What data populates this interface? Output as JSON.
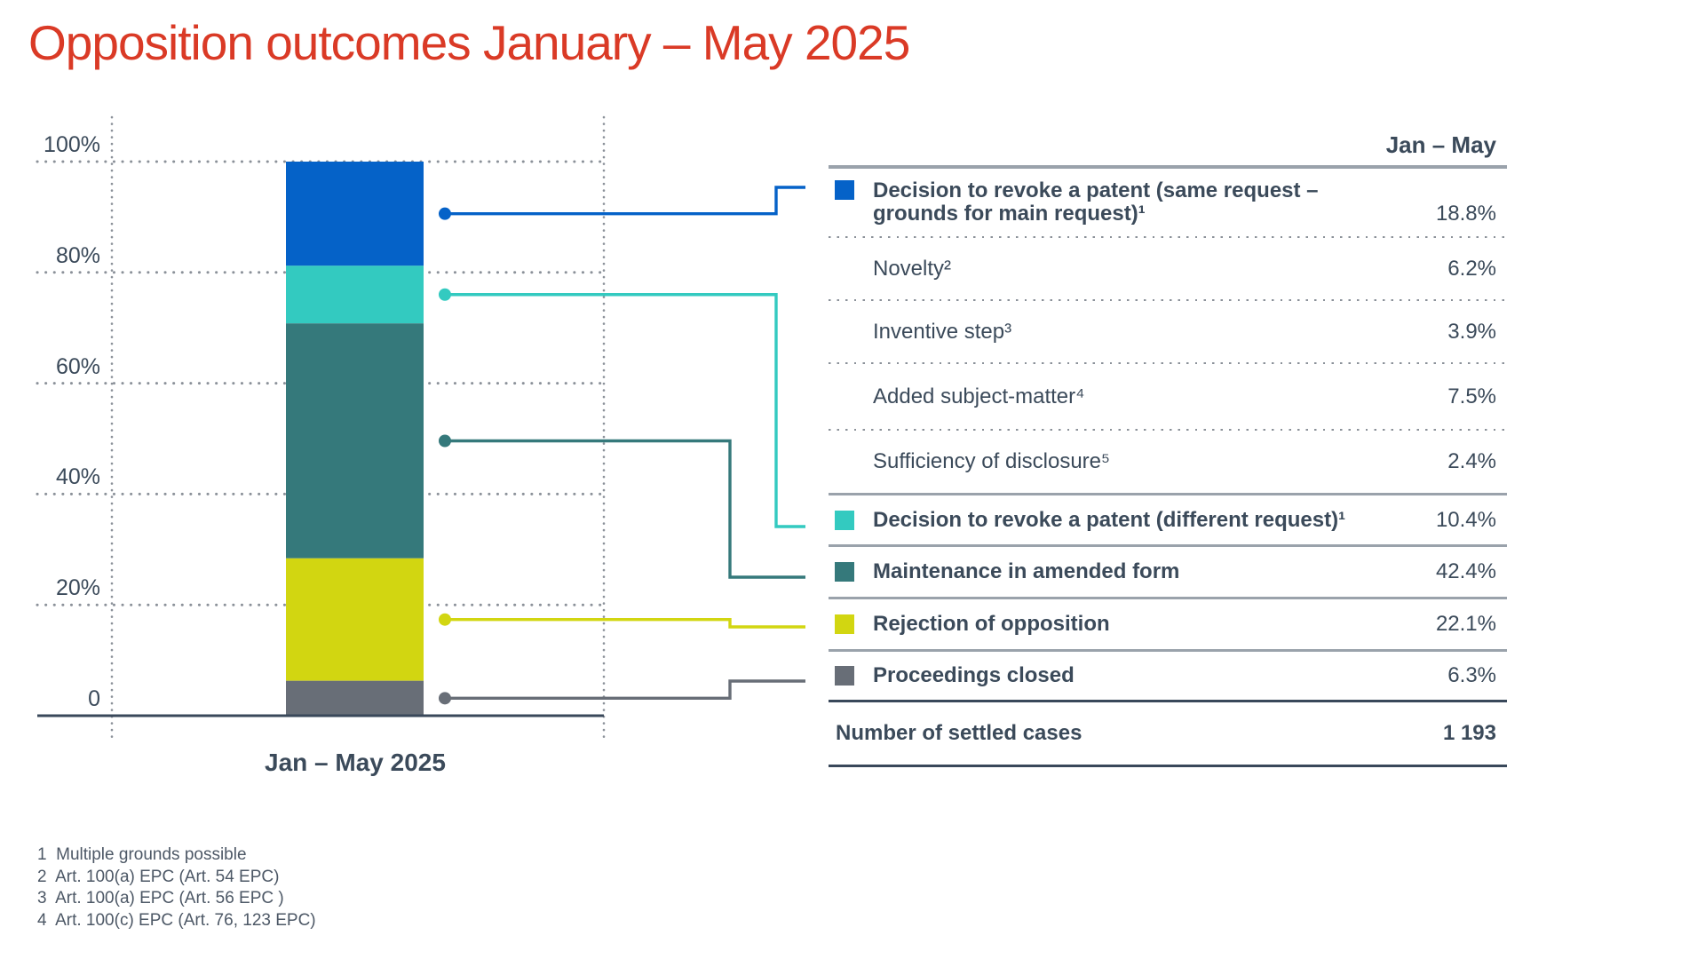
{
  "page": {
    "title": "Opposition outcomes January – May 2025"
  },
  "chart_data": {
    "type": "bar",
    "stacked": true,
    "title": "Opposition outcomes January – May 2025",
    "categories": [
      "Jan – May 2025"
    ],
    "x_axis_label": "Jan – May 2025",
    "y_ticks": [
      "100%",
      "80%",
      "60%",
      "40%",
      "20%",
      "0"
    ],
    "ylim": [
      0,
      100
    ],
    "grid": "dotted",
    "legend_position": "right-table",
    "series": [
      {
        "name": "Decision to revoke a patent (same request – grounds for main request)",
        "value": 18.8,
        "color": "#0562c8"
      },
      {
        "name": "Decision to revoke a patent (different request)",
        "value": 10.4,
        "color": "#33cac0"
      },
      {
        "name": "Maintenance in amended form",
        "value": 42.4,
        "color": "#35797b"
      },
      {
        "name": "Rejection of opposition",
        "value": 22.1,
        "color": "#d2d611"
      },
      {
        "name": "Proceedings closed",
        "value": 6.3,
        "color": "#686e77"
      }
    ]
  },
  "table": {
    "period_header": "Jan – May",
    "rows": [
      {
        "label": "Decision to revoke a patent (same request –\ngrounds for main request)¹",
        "value": "18.8%"
      },
      {
        "label": "Novelty²",
        "value": "6.2%"
      },
      {
        "label": "Inventive step³",
        "value": "3.9%"
      },
      {
        "label": "Added subject-matter⁴",
        "value": "7.5%"
      },
      {
        "label": "Sufficiency of disclosure⁵",
        "value": "2.4%"
      },
      {
        "label": "Decision to revoke a patent (different request)¹",
        "value": "10.4%"
      },
      {
        "label": "Maintenance in amended form",
        "value": "42.4%"
      },
      {
        "label": "Rejection of opposition",
        "value": "22.1%"
      },
      {
        "label": "Proceedings closed",
        "value": "6.3%"
      },
      {
        "label": "Number of settled cases",
        "value": "1 193"
      }
    ]
  },
  "footnotes": [
    "1  Multiple grounds possible",
    "2  Art. 100(a) EPC (Art. 54 EPC)",
    "3  Art. 100(a) EPC (Art. 56 EPC )",
    "4  Art. 100(c) EPC (Art. 76, 123 EPC)"
  ],
  "colors": {
    "title": "#da3a26",
    "text": "#3b4a5a",
    "revoke_same_request": "#0562c8",
    "revoke_different_request": "#33cac0",
    "maintenance_amended": "#35797b",
    "rejection_of_opposition": "#d2d611",
    "proceedings_closed": "#686e77",
    "rule_light": "#9aa2ab",
    "rule_dark": "#39485a",
    "grid_dots": "#8b9199"
  }
}
